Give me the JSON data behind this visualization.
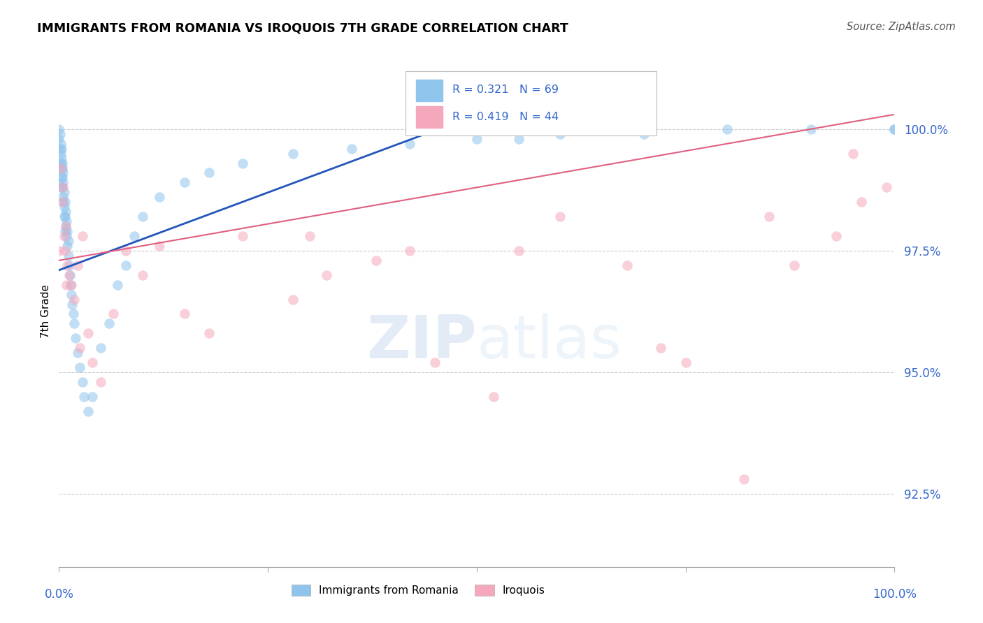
{
  "title": "IMMIGRANTS FROM ROMANIA VS IROQUOIS 7TH GRADE CORRELATION CHART",
  "source": "Source: ZipAtlas.com",
  "ylabel": "7th Grade",
  "yticks": [
    92.5,
    95.0,
    97.5,
    100.0
  ],
  "ytick_labels": [
    "92.5%",
    "95.0%",
    "97.5%",
    "100.0%"
  ],
  "xlim": [
    0.0,
    1.0
  ],
  "ylim": [
    91.0,
    101.5
  ],
  "legend1_label": "Immigrants from Romania",
  "legend2_label": "Iroquois",
  "r1_text": "R = 0.321",
  "n1_text": "N = 69",
  "r2_text": "R = 0.419",
  "n2_text": "N = 44",
  "blue_color": "#8FC4EC",
  "pink_color": "#F5A8BC",
  "blue_line_color": "#2255BB",
  "pink_line_color": "#E06080",
  "blue_line_x": [
    0.0,
    0.47
  ],
  "blue_line_y": [
    97.1,
    100.1
  ],
  "pink_line_x": [
    0.0,
    1.0
  ],
  "pink_line_y": [
    97.3,
    100.3
  ],
  "blue_x": [
    0.0,
    0.0,
    0.001,
    0.001,
    0.002,
    0.002,
    0.002,
    0.003,
    0.003,
    0.003,
    0.003,
    0.004,
    0.004,
    0.004,
    0.005,
    0.005,
    0.005,
    0.006,
    0.006,
    0.007,
    0.007,
    0.008,
    0.008,
    0.009,
    0.009,
    0.01,
    0.01,
    0.011,
    0.011,
    0.012,
    0.013,
    0.014,
    0.015,
    0.016,
    0.017,
    0.018,
    0.02,
    0.022,
    0.025,
    0.028,
    0.03,
    0.035,
    0.04,
    0.05,
    0.06,
    0.07,
    0.08,
    0.09,
    0.1,
    0.12,
    0.15,
    0.18,
    0.22,
    0.28,
    0.35,
    0.42,
    0.5,
    0.55,
    0.6,
    0.7,
    0.8,
    0.9,
    1.0,
    1.0,
    0.003,
    0.004,
    0.005,
    0.006,
    0.007
  ],
  "blue_y": [
    99.8,
    100.0,
    99.6,
    99.9,
    99.3,
    99.5,
    99.7,
    99.0,
    99.2,
    99.4,
    99.6,
    98.8,
    99.0,
    99.3,
    98.6,
    98.9,
    99.1,
    98.4,
    98.7,
    98.2,
    98.5,
    98.0,
    98.3,
    97.8,
    98.1,
    97.6,
    97.9,
    97.4,
    97.7,
    97.2,
    97.0,
    96.8,
    96.6,
    96.4,
    96.2,
    96.0,
    95.7,
    95.4,
    95.1,
    94.8,
    94.5,
    94.2,
    94.5,
    95.5,
    96.0,
    96.8,
    97.2,
    97.8,
    98.2,
    98.6,
    98.9,
    99.1,
    99.3,
    99.5,
    99.6,
    99.7,
    99.8,
    99.8,
    99.9,
    99.9,
    100.0,
    100.0,
    100.0,
    100.0,
    98.8,
    99.2,
    98.5,
    98.2,
    97.9
  ],
  "pink_x": [
    0.0,
    0.002,
    0.004,
    0.006,
    0.008,
    0.01,
    0.012,
    0.015,
    0.018,
    0.022,
    0.028,
    0.035,
    0.04,
    0.05,
    0.065,
    0.08,
    0.1,
    0.12,
    0.15,
    0.18,
    0.22,
    0.28,
    0.32,
    0.38,
    0.45,
    0.52,
    0.6,
    0.68,
    0.75,
    0.82,
    0.88,
    0.93,
    0.96,
    0.99,
    0.005,
    0.007,
    0.009,
    0.025,
    0.3,
    0.42,
    0.55,
    0.72,
    0.85,
    0.95
  ],
  "pink_y": [
    97.5,
    99.2,
    98.5,
    97.8,
    98.0,
    97.2,
    97.0,
    96.8,
    96.5,
    97.2,
    97.8,
    95.8,
    95.2,
    94.8,
    96.2,
    97.5,
    97.0,
    97.6,
    96.2,
    95.8,
    97.8,
    96.5,
    97.0,
    97.3,
    95.2,
    94.5,
    98.2,
    97.2,
    95.2,
    92.8,
    97.2,
    97.8,
    98.5,
    98.8,
    98.8,
    97.5,
    96.8,
    95.5,
    97.8,
    97.5,
    97.5,
    95.5,
    98.2,
    99.5
  ]
}
